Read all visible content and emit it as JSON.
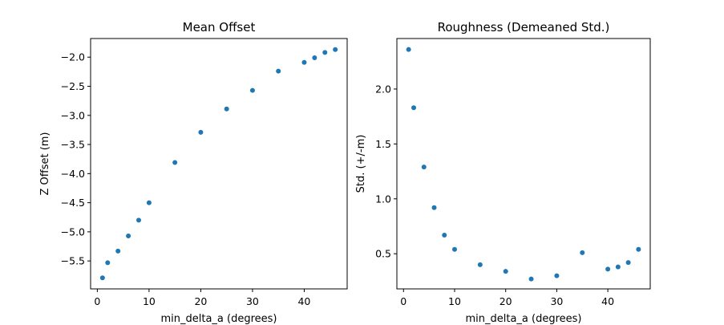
{
  "chart_data": [
    {
      "type": "scatter",
      "title": "Mean Offset",
      "xlabel": "min_delta_a (degrees)",
      "ylabel": "Z Offset (m)",
      "xlim": [
        -1.3,
        48.3
      ],
      "ylim": [
        -5.98,
        -1.68
      ],
      "xticks": [
        0,
        10,
        20,
        30,
        40
      ],
      "yticks": [
        -2.0,
        -2.5,
        -3.0,
        -3.5,
        -4.0,
        -4.5,
        -5.0,
        -5.5
      ],
      "ytick_labels": [
        "−2.0",
        "−2.5",
        "−3.0",
        "−3.5",
        "−4.0",
        "−4.5",
        "−5.0",
        "−5.5"
      ],
      "marker_color": "#1f77b4",
      "x": [
        1,
        2,
        4,
        6,
        8,
        10,
        15,
        20,
        25,
        30,
        35,
        40,
        42,
        44,
        46
      ],
      "y": [
        -5.79,
        -5.53,
        -5.33,
        -5.07,
        -4.8,
        -4.5,
        -3.81,
        -3.29,
        -2.89,
        -2.57,
        -2.24,
        -2.09,
        -2.01,
        -1.92,
        -1.87
      ]
    },
    {
      "type": "scatter",
      "title": "Roughness (Demeaned Std.)",
      "xlabel": "min_delta_a (degrees)",
      "ylabel": "Std. (+/-m)",
      "xlim": [
        -1.3,
        48.3
      ],
      "ylim": [
        0.18,
        2.46
      ],
      "xticks": [
        0,
        10,
        20,
        30,
        40
      ],
      "yticks": [
        0.5,
        1.0,
        1.5,
        2.0
      ],
      "ytick_labels": [
        "0.5",
        "1.0",
        "1.5",
        "2.0"
      ],
      "marker_color": "#1f77b4",
      "x": [
        1,
        2,
        4,
        6,
        8,
        10,
        15,
        20,
        25,
        30,
        35,
        40,
        42,
        44,
        46
      ],
      "y": [
        2.36,
        1.83,
        1.29,
        0.92,
        0.67,
        0.54,
        0.4,
        0.34,
        0.27,
        0.3,
        0.51,
        0.36,
        0.38,
        0.42,
        0.54
      ]
    }
  ]
}
